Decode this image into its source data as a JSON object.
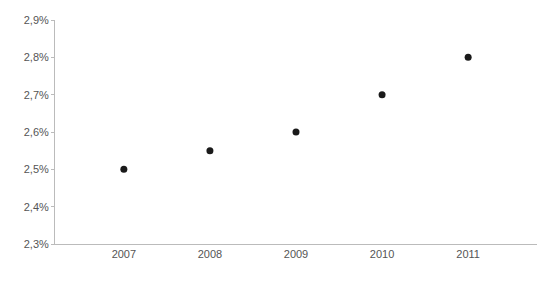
{
  "chart_data": {
    "type": "scatter",
    "x": [
      2007,
      2008,
      2009,
      2010,
      2011
    ],
    "values": [
      0.025,
      0.0255,
      0.026,
      0.027,
      0.028
    ],
    "color": "#1a1a1a",
    "marker": "circle",
    "xlim": [
      2006.2,
      2011.8
    ],
    "xticks": [
      2007,
      2008,
      2009,
      2010,
      2011
    ],
    "ylim": [
      0.023,
      0.029
    ],
    "yticks": [
      {
        "value": 0.023,
        "label": "2,3%"
      },
      {
        "value": 0.024,
        "label": "2,4%"
      },
      {
        "value": 0.025,
        "label": "2,5%"
      },
      {
        "value": 0.026,
        "label": "2,6%"
      },
      {
        "value": 0.027,
        "label": "2,7%"
      },
      {
        "value": 0.028,
        "label": "2,8%"
      },
      {
        "value": 0.029,
        "label": "2,9%"
      }
    ],
    "grid": false
  }
}
